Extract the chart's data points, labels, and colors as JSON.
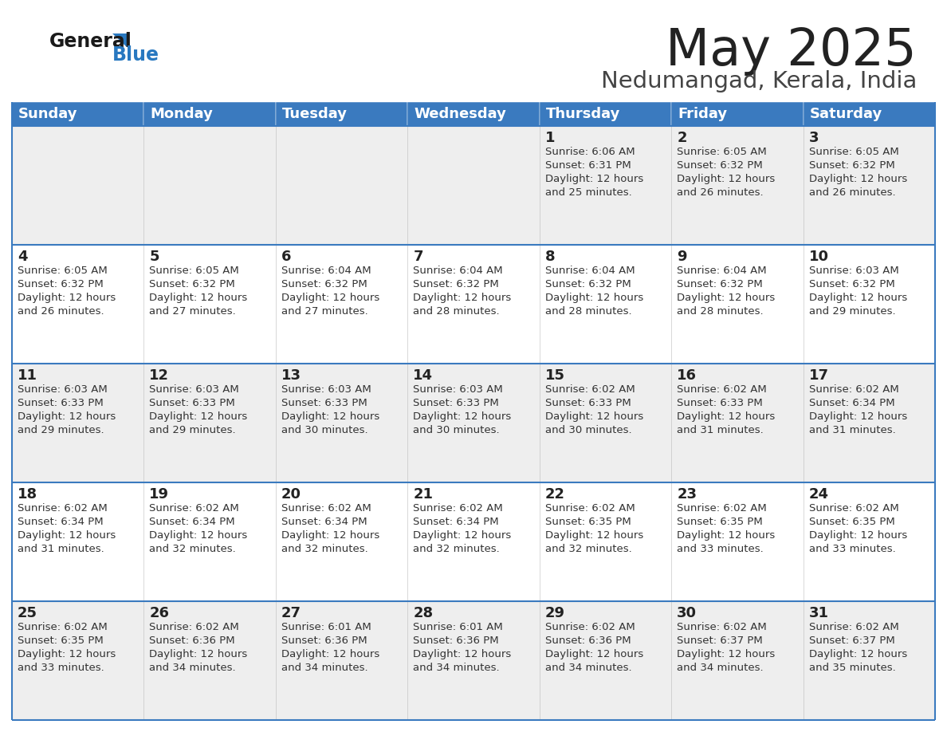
{
  "title": "May 2025",
  "subtitle": "Nedumangad, Kerala, India",
  "header_bg": "#3a7abf",
  "header_text": "#ffffff",
  "row_bg_even": "#ffffff",
  "row_bg_odd": "#eeeeee",
  "cell_border": "#3a7abf",
  "day_headers": [
    "Sunday",
    "Monday",
    "Tuesday",
    "Wednesday",
    "Thursday",
    "Friday",
    "Saturday"
  ],
  "title_color": "#222222",
  "subtitle_color": "#444444",
  "logo_black": "#1a1a1a",
  "logo_blue": "#2878c0",
  "days": [
    {
      "day": 1,
      "col": 4,
      "row": 0,
      "sunrise": "6:06 AM",
      "sunset": "6:31 PM",
      "daylight": "12 hours and 25 minutes."
    },
    {
      "day": 2,
      "col": 5,
      "row": 0,
      "sunrise": "6:05 AM",
      "sunset": "6:32 PM",
      "daylight": "12 hours and 26 minutes."
    },
    {
      "day": 3,
      "col": 6,
      "row": 0,
      "sunrise": "6:05 AM",
      "sunset": "6:32 PM",
      "daylight": "12 hours and 26 minutes."
    },
    {
      "day": 4,
      "col": 0,
      "row": 1,
      "sunrise": "6:05 AM",
      "sunset": "6:32 PM",
      "daylight": "12 hours and 26 minutes."
    },
    {
      "day": 5,
      "col": 1,
      "row": 1,
      "sunrise": "6:05 AM",
      "sunset": "6:32 PM",
      "daylight": "12 hours and 27 minutes."
    },
    {
      "day": 6,
      "col": 2,
      "row": 1,
      "sunrise": "6:04 AM",
      "sunset": "6:32 PM",
      "daylight": "12 hours and 27 minutes."
    },
    {
      "day": 7,
      "col": 3,
      "row": 1,
      "sunrise": "6:04 AM",
      "sunset": "6:32 PM",
      "daylight": "12 hours and 28 minutes."
    },
    {
      "day": 8,
      "col": 4,
      "row": 1,
      "sunrise": "6:04 AM",
      "sunset": "6:32 PM",
      "daylight": "12 hours and 28 minutes."
    },
    {
      "day": 9,
      "col": 5,
      "row": 1,
      "sunrise": "6:04 AM",
      "sunset": "6:32 PM",
      "daylight": "12 hours and 28 minutes."
    },
    {
      "day": 10,
      "col": 6,
      "row": 1,
      "sunrise": "6:03 AM",
      "sunset": "6:32 PM",
      "daylight": "12 hours and 29 minutes."
    },
    {
      "day": 11,
      "col": 0,
      "row": 2,
      "sunrise": "6:03 AM",
      "sunset": "6:33 PM",
      "daylight": "12 hours and 29 minutes."
    },
    {
      "day": 12,
      "col": 1,
      "row": 2,
      "sunrise": "6:03 AM",
      "sunset": "6:33 PM",
      "daylight": "12 hours and 29 minutes."
    },
    {
      "day": 13,
      "col": 2,
      "row": 2,
      "sunrise": "6:03 AM",
      "sunset": "6:33 PM",
      "daylight": "12 hours and 30 minutes."
    },
    {
      "day": 14,
      "col": 3,
      "row": 2,
      "sunrise": "6:03 AM",
      "sunset": "6:33 PM",
      "daylight": "12 hours and 30 minutes."
    },
    {
      "day": 15,
      "col": 4,
      "row": 2,
      "sunrise": "6:02 AM",
      "sunset": "6:33 PM",
      "daylight": "12 hours and 30 minutes."
    },
    {
      "day": 16,
      "col": 5,
      "row": 2,
      "sunrise": "6:02 AM",
      "sunset": "6:33 PM",
      "daylight": "12 hours and 31 minutes."
    },
    {
      "day": 17,
      "col": 6,
      "row": 2,
      "sunrise": "6:02 AM",
      "sunset": "6:34 PM",
      "daylight": "12 hours and 31 minutes."
    },
    {
      "day": 18,
      "col": 0,
      "row": 3,
      "sunrise": "6:02 AM",
      "sunset": "6:34 PM",
      "daylight": "12 hours and 31 minutes."
    },
    {
      "day": 19,
      "col": 1,
      "row": 3,
      "sunrise": "6:02 AM",
      "sunset": "6:34 PM",
      "daylight": "12 hours and 32 minutes."
    },
    {
      "day": 20,
      "col": 2,
      "row": 3,
      "sunrise": "6:02 AM",
      "sunset": "6:34 PM",
      "daylight": "12 hours and 32 minutes."
    },
    {
      "day": 21,
      "col": 3,
      "row": 3,
      "sunrise": "6:02 AM",
      "sunset": "6:34 PM",
      "daylight": "12 hours and 32 minutes."
    },
    {
      "day": 22,
      "col": 4,
      "row": 3,
      "sunrise": "6:02 AM",
      "sunset": "6:35 PM",
      "daylight": "12 hours and 32 minutes."
    },
    {
      "day": 23,
      "col": 5,
      "row": 3,
      "sunrise": "6:02 AM",
      "sunset": "6:35 PM",
      "daylight": "12 hours and 33 minutes."
    },
    {
      "day": 24,
      "col": 6,
      "row": 3,
      "sunrise": "6:02 AM",
      "sunset": "6:35 PM",
      "daylight": "12 hours and 33 minutes."
    },
    {
      "day": 25,
      "col": 0,
      "row": 4,
      "sunrise": "6:02 AM",
      "sunset": "6:35 PM",
      "daylight": "12 hours and 33 minutes."
    },
    {
      "day": 26,
      "col": 1,
      "row": 4,
      "sunrise": "6:02 AM",
      "sunset": "6:36 PM",
      "daylight": "12 hours and 34 minutes."
    },
    {
      "day": 27,
      "col": 2,
      "row": 4,
      "sunrise": "6:01 AM",
      "sunset": "6:36 PM",
      "daylight": "12 hours and 34 minutes."
    },
    {
      "day": 28,
      "col": 3,
      "row": 4,
      "sunrise": "6:01 AM",
      "sunset": "6:36 PM",
      "daylight": "12 hours and 34 minutes."
    },
    {
      "day": 29,
      "col": 4,
      "row": 4,
      "sunrise": "6:02 AM",
      "sunset": "6:36 PM",
      "daylight": "12 hours and 34 minutes."
    },
    {
      "day": 30,
      "col": 5,
      "row": 4,
      "sunrise": "6:02 AM",
      "sunset": "6:37 PM",
      "daylight": "12 hours and 34 minutes."
    },
    {
      "day": 31,
      "col": 6,
      "row": 4,
      "sunrise": "6:02 AM",
      "sunset": "6:37 PM",
      "daylight": "12 hours and 35 minutes."
    }
  ]
}
